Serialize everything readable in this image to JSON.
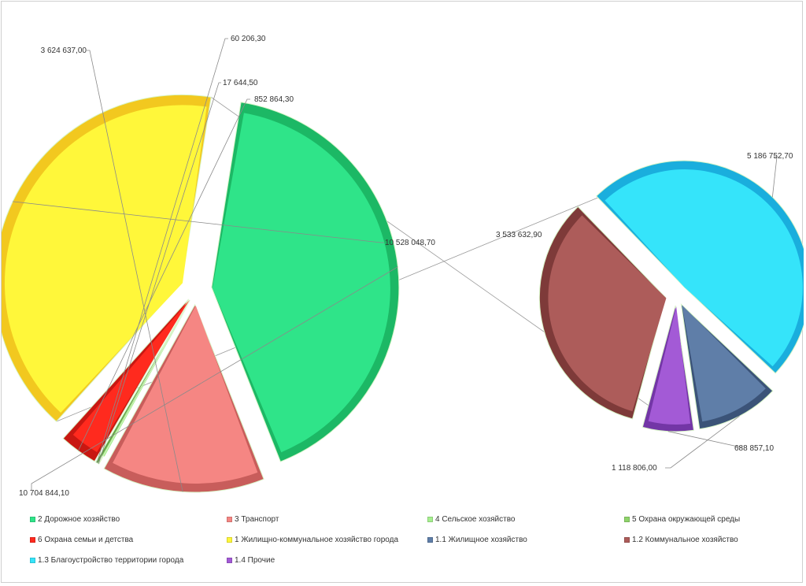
{
  "chart_data": {
    "type": "pie",
    "subtype": "pie-of-pie",
    "title": "",
    "main_slices": [
      {
        "name": "2 Дорожное хозяйство",
        "value": 10704844.1,
        "label": "10 704 844,10",
        "color": "#2fe489",
        "side": "#1cb865"
      },
      {
        "name": "3 Транспорт",
        "value": 3624637.0,
        "label": "3 624 637,00",
        "color": "#f58683",
        "side": "#c85d5b"
      },
      {
        "name": "4 Сельское хозяйство",
        "value": 17644.5,
        "label": "17 644,50",
        "color": "#a6f08f",
        "side": "#6fc25a"
      },
      {
        "name": "5 Охрана окружающей среды",
        "value": 60206.3,
        "label": "60 206,30",
        "color": "#8fd46a",
        "side": "#5fa246"
      },
      {
        "name": "6 Охрана семьи и детства",
        "value": 852864.3,
        "label": "852 864,30",
        "color": "#ff2a1e",
        "side": "#c81812"
      },
      {
        "name": "1 Жилищно-коммунальное  хозяйство города",
        "value": 10528048.7,
        "label": "10 528 048,70",
        "color": "#fff73a",
        "side": "#f2c81f"
      }
    ],
    "secondary_slices": [
      {
        "name": "1.1 Жилищное хозяйство",
        "value": 1118806.0,
        "label": "1 118 806,00",
        "color": "#5f7ea8",
        "side": "#3b5378"
      },
      {
        "name": "1.2 Коммунальное хозяйство",
        "value": 3533632.9,
        "label": "3 533 632,90",
        "color": "#ad5c5a",
        "side": "#7e3a39"
      },
      {
        "name": "1.3 Благоустройство территории города",
        "value": 5186752.7,
        "label": "5 186 752,70",
        "color": "#35e4fa",
        "side": "#1aaedd"
      },
      {
        "name": "1.4 Прочие",
        "value": 688857.1,
        "label": "688 857,10",
        "color": "#a35ad6",
        "side": "#7336a6"
      }
    ],
    "legend": [
      {
        "label": "2 Дорожное хозяйство",
        "color": "#2fe489"
      },
      {
        "label": "3 Транспорт",
        "color": "#f58683"
      },
      {
        "label": "4 Сельское хозяйство",
        "color": "#a6f08f"
      },
      {
        "label": "5 Охрана окружающей среды",
        "color": "#8fd46a"
      },
      {
        "label": "6 Охрана семьи и детства",
        "color": "#ff2a1e"
      },
      {
        "label": "1 Жилищно-коммунальное  хозяйство города",
        "color": "#fff73a"
      },
      {
        "label": "1.1 Жилищное хозяйство",
        "color": "#5f7ea8"
      },
      {
        "label": "1.2 Коммунальное хозяйство",
        "color": "#ad5c5a"
      },
      {
        "label": "1.3 Благоустройство территории города",
        "color": "#35e4fa"
      },
      {
        "label": "1.4 Прочие",
        "color": "#a35ad6"
      }
    ],
    "legend_position": "bottom"
  }
}
